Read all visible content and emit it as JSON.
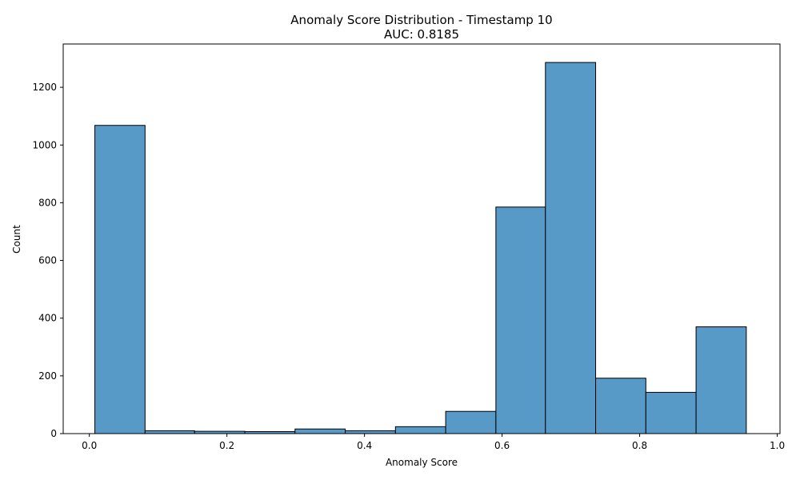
{
  "chart_data": {
    "type": "bar",
    "title": "Anomaly Score Distribution - Timestamp 10",
    "subtitle": "AUC: 0.8185",
    "xlabel": "Anomaly Score",
    "ylabel": "Count",
    "xlim": [
      -0.038,
      1.004
    ],
    "ylim": [
      0,
      1350
    ],
    "xticks": [
      0.0,
      0.2,
      0.4,
      0.6,
      0.8,
      1.0
    ],
    "xtick_labels": [
      "0.0",
      "0.2",
      "0.4",
      "0.6",
      "0.8",
      "1.0"
    ],
    "yticks": [
      0,
      200,
      400,
      600,
      800,
      1000,
      1200
    ],
    "ytick_labels": [
      "0",
      "200",
      "400",
      "600",
      "800",
      "1000",
      "1200"
    ],
    "grid": false,
    "legend": false,
    "bar_color": "#5799c7",
    "edge_color": "#000000",
    "bins": [
      {
        "x0": 0.008,
        "x1": 0.081,
        "count": 1068
      },
      {
        "x0": 0.081,
        "x1": 0.153,
        "count": 10
      },
      {
        "x0": 0.153,
        "x1": 0.226,
        "count": 8
      },
      {
        "x0": 0.226,
        "x1": 0.299,
        "count": 7
      },
      {
        "x0": 0.299,
        "x1": 0.372,
        "count": 16
      },
      {
        "x0": 0.372,
        "x1": 0.445,
        "count": 10
      },
      {
        "x0": 0.445,
        "x1": 0.518,
        "count": 24
      },
      {
        "x0": 0.518,
        "x1": 0.591,
        "count": 77
      },
      {
        "x0": 0.591,
        "x1": 0.663,
        "count": 785
      },
      {
        "x0": 0.663,
        "x1": 0.736,
        "count": 1286
      },
      {
        "x0": 0.736,
        "x1": 0.809,
        "count": 192
      },
      {
        "x0": 0.809,
        "x1": 0.882,
        "count": 143
      },
      {
        "x0": 0.882,
        "x1": 0.955,
        "count": 370
      }
    ]
  }
}
